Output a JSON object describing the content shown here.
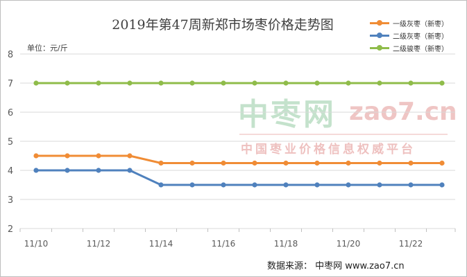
{
  "chart_data": {
    "type": "line",
    "title": "2019年第47周新郑市场枣价格走势图",
    "unit_label": "单位：元/斤",
    "xlabel": "",
    "ylabel": "",
    "ylim": [
      2,
      8
    ],
    "yticks": [
      "2",
      "3",
      "4",
      "5",
      "6",
      "7",
      "8"
    ],
    "x": [
      "11/10",
      "11/11",
      "11/12",
      "11/13",
      "11/14",
      "11/15",
      "11/16",
      "11/17",
      "11/18",
      "11/19",
      "11/20",
      "11/21",
      "11/22",
      "11/23"
    ],
    "xtick_labels": [
      "11/10",
      "11/12",
      "11/14",
      "11/16",
      "11/18",
      "11/20",
      "11/22"
    ],
    "grid": true,
    "legend_position": "top-right",
    "series": [
      {
        "name": "一级灰枣（新枣）",
        "color": "#f08c35",
        "values": [
          4.5,
          4.5,
          4.5,
          4.5,
          4.25,
          4.25,
          4.25,
          4.25,
          4.25,
          4.25,
          4.25,
          4.25,
          4.25,
          4.25
        ]
      },
      {
        "name": "二级灰枣（新枣）",
        "color": "#4f81bd",
        "values": [
          4.0,
          4.0,
          4.0,
          4.0,
          3.5,
          3.5,
          3.5,
          3.5,
          3.5,
          3.5,
          3.5,
          3.5,
          3.5,
          3.5
        ]
      },
      {
        "name": "二级骏枣（新枣）",
        "color": "#8fbc4a",
        "values": [
          7.0,
          7.0,
          7.0,
          7.0,
          7.0,
          7.0,
          7.0,
          7.0,
          7.0,
          7.0,
          7.0,
          7.0,
          7.0,
          7.0
        ]
      }
    ]
  },
  "watermark": {
    "brand_cn": "中枣网",
    "url": "zao7.cn",
    "slogan": "中国枣业价格信息权威平台"
  },
  "source": "数据来源：  中枣网 www.zao7.cn"
}
